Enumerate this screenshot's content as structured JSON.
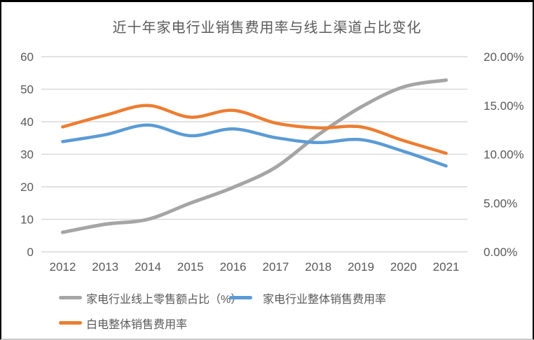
{
  "chart_data": {
    "type": "line",
    "title": "近十年家电行业销售费用率与线上渠道占比变化",
    "categories": [
      "2012",
      "2013",
      "2014",
      "2015",
      "2016",
      "2017",
      "2018",
      "2019",
      "2020",
      "2021"
    ],
    "series": [
      {
        "key": "online-retail-share",
        "name": "家电行业线上零售额占比（%）",
        "axis": "left",
        "color": "#A5A5A5",
        "values": [
          6,
          8.5,
          10,
          15,
          19.8,
          26,
          36,
          44.5,
          50.7,
          52.8
        ]
      },
      {
        "key": "appliance-overall-selling-expense-ratio",
        "name": "家电行业整体销售费用率",
        "axis": "right",
        "color": "#5B9BD5",
        "values": [
          11.3,
          12.0,
          13.0,
          11.9,
          12.6,
          11.7,
          11.2,
          11.5,
          10.3,
          8.8
        ]
      },
      {
        "key": "white-goods-selling-expense-ratio",
        "name": "白电整体销售费用率",
        "axis": "right",
        "color": "#ED7D31",
        "values": [
          12.8,
          14.0,
          15.0,
          13.8,
          14.5,
          13.2,
          12.7,
          12.8,
          11.4,
          10.1
        ]
      }
    ],
    "left_axis": {
      "min": 0,
      "max": 60,
      "ticks": [
        0,
        10,
        20,
        30,
        40,
        50,
        60
      ]
    },
    "right_axis": {
      "min": 0,
      "max": 20,
      "tick_values": [
        0,
        5,
        10,
        15,
        20
      ],
      "tick_labels": [
        "0.00%",
        "5.00%",
        "10.00%",
        "15.00%",
        "20.00%"
      ]
    },
    "grid": true,
    "legend_position": "bottom",
    "colors": {
      "gridline": "#D9D9D9",
      "text": "#595959",
      "background": "#FFFFFF"
    }
  }
}
